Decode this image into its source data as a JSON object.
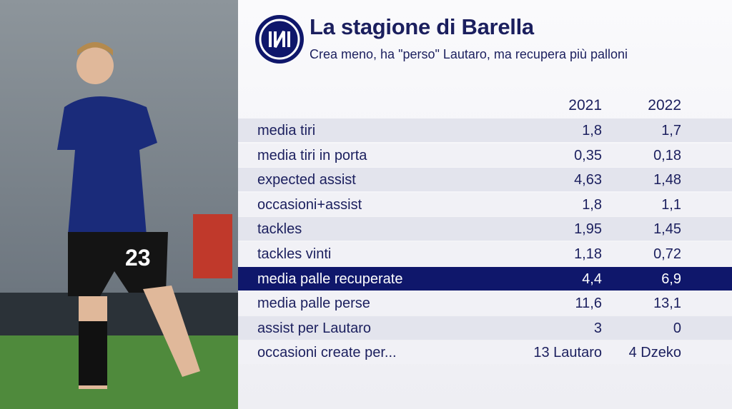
{
  "header": {
    "title": "La stagione di Barella",
    "subtitle": "Crea meno, ha \"perso\" Lautaro, ma recupera più palloni"
  },
  "table": {
    "columns": [
      "2021",
      "2022"
    ],
    "rows": [
      [
        "media tiri",
        "1,8",
        "1,7"
      ],
      [
        "media tiri in porta",
        "0,35",
        "0,18"
      ],
      [
        "expected assist",
        "4,63",
        "1,48"
      ],
      [
        "occasioni+assist",
        "1,8",
        "1,1"
      ],
      [
        "tackles",
        "1,95",
        "1,45"
      ],
      [
        "tackles vinti",
        "1,18",
        "0,72"
      ],
      [
        "media palle recuperate",
        "4,4",
        "6,9"
      ],
      [
        "media palle perse",
        "11,6",
        "13,1"
      ],
      [
        "assist per Lautaro",
        "3",
        "0"
      ],
      [
        "occasioni create per...",
        "13 Lautaro",
        "4 Dzeko"
      ]
    ]
  }
}
